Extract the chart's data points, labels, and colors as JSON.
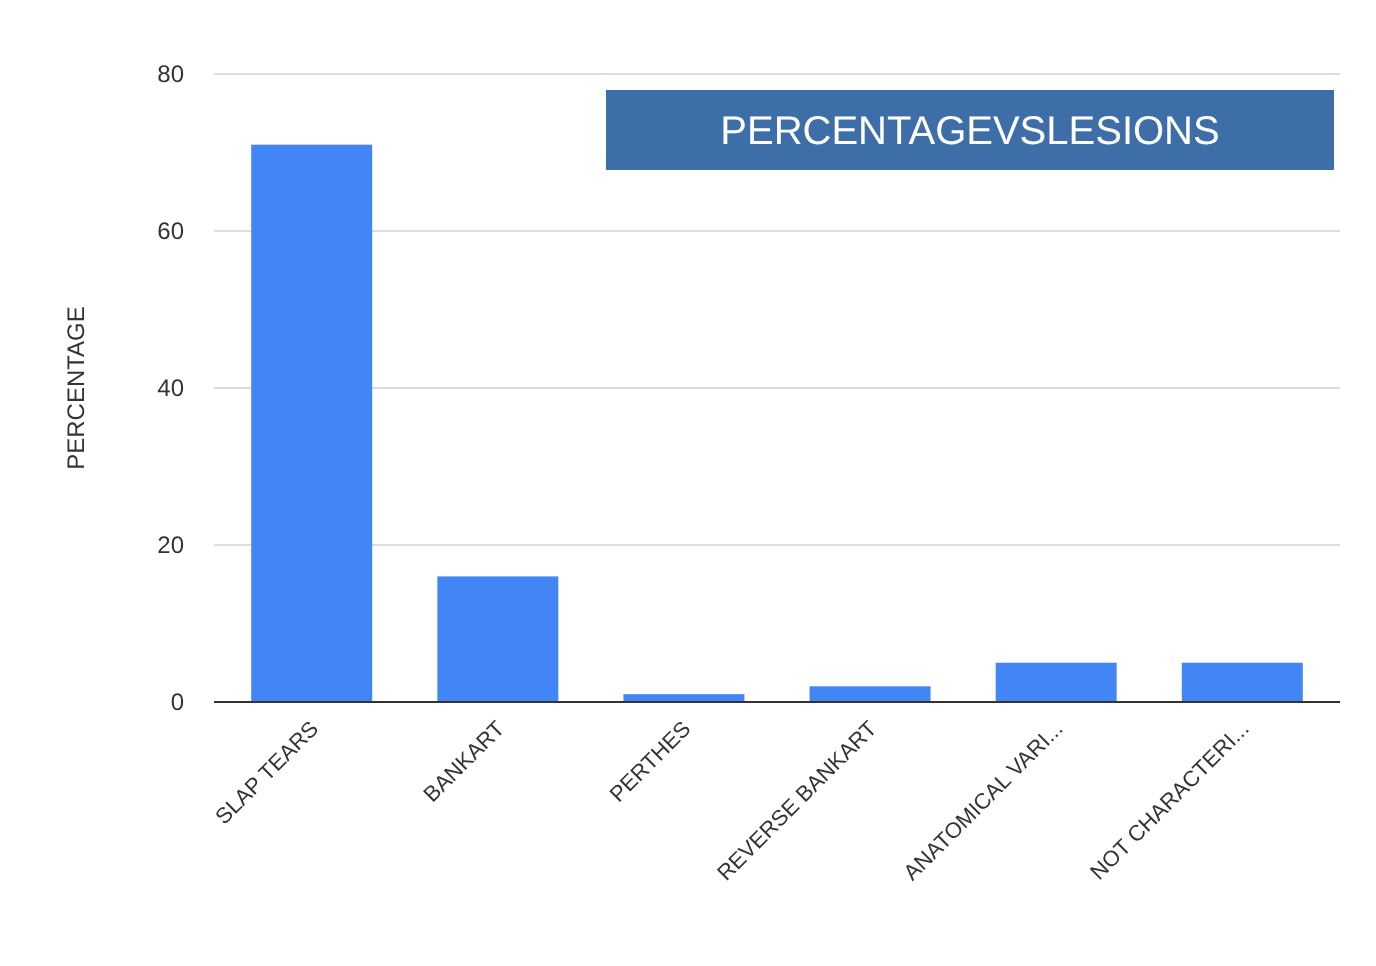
{
  "chart_data": {
    "type": "bar",
    "title": "PERCENTAGEVSLESIONS",
    "ylabel": "PERCENTAGE",
    "categories": [
      "SLAP TEARS",
      "BANKART",
      "PERTHES",
      "REVERSE BANKART",
      "ANATOMICAL VARI...",
      "NOT CHARACTERI..."
    ],
    "values": [
      71,
      16,
      1,
      2,
      5,
      5
    ],
    "color": "#4285f4",
    "ylim": [
      0,
      80
    ],
    "yticks": [
      0,
      20,
      40,
      60,
      80
    ],
    "grid": "y"
  }
}
